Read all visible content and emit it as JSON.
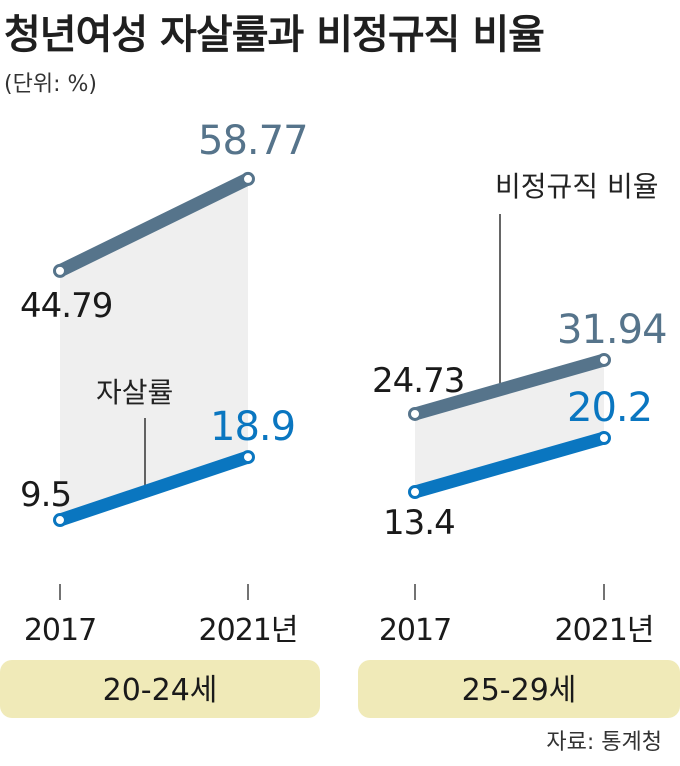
{
  "title": "청년여성 자살률과 비정규직 비율",
  "unit": "(단위: %)",
  "source": "자료: 통계청",
  "colors": {
    "nonregular": "#56748b",
    "suicide": "#0a76c0",
    "band": "#efefef",
    "panel": "#f0eab8"
  },
  "chart_data": [
    {
      "type": "line",
      "group_label": "20-24세",
      "x": [
        "2017",
        "2021년"
      ],
      "series": [
        {
          "name": "비정규직 비율",
          "values": [
            44.79,
            58.77
          ],
          "labels": [
            "44.79",
            "58.77"
          ]
        },
        {
          "name": "자살률",
          "values": [
            9.5,
            18.9
          ],
          "labels": [
            "9.5",
            "18.9"
          ]
        }
      ],
      "annotation": "자살률"
    },
    {
      "type": "line",
      "group_label": "25-29세",
      "x": [
        "2017",
        "2021년"
      ],
      "series": [
        {
          "name": "비정규직 비율",
          "values": [
            24.73,
            31.94
          ],
          "labels": [
            "24.73",
            "31.94"
          ]
        },
        {
          "name": "자살률",
          "values": [
            13.4,
            20.2
          ],
          "labels": [
            "13.4",
            "20.2"
          ]
        }
      ],
      "annotation": "비정규직 비율"
    }
  ]
}
